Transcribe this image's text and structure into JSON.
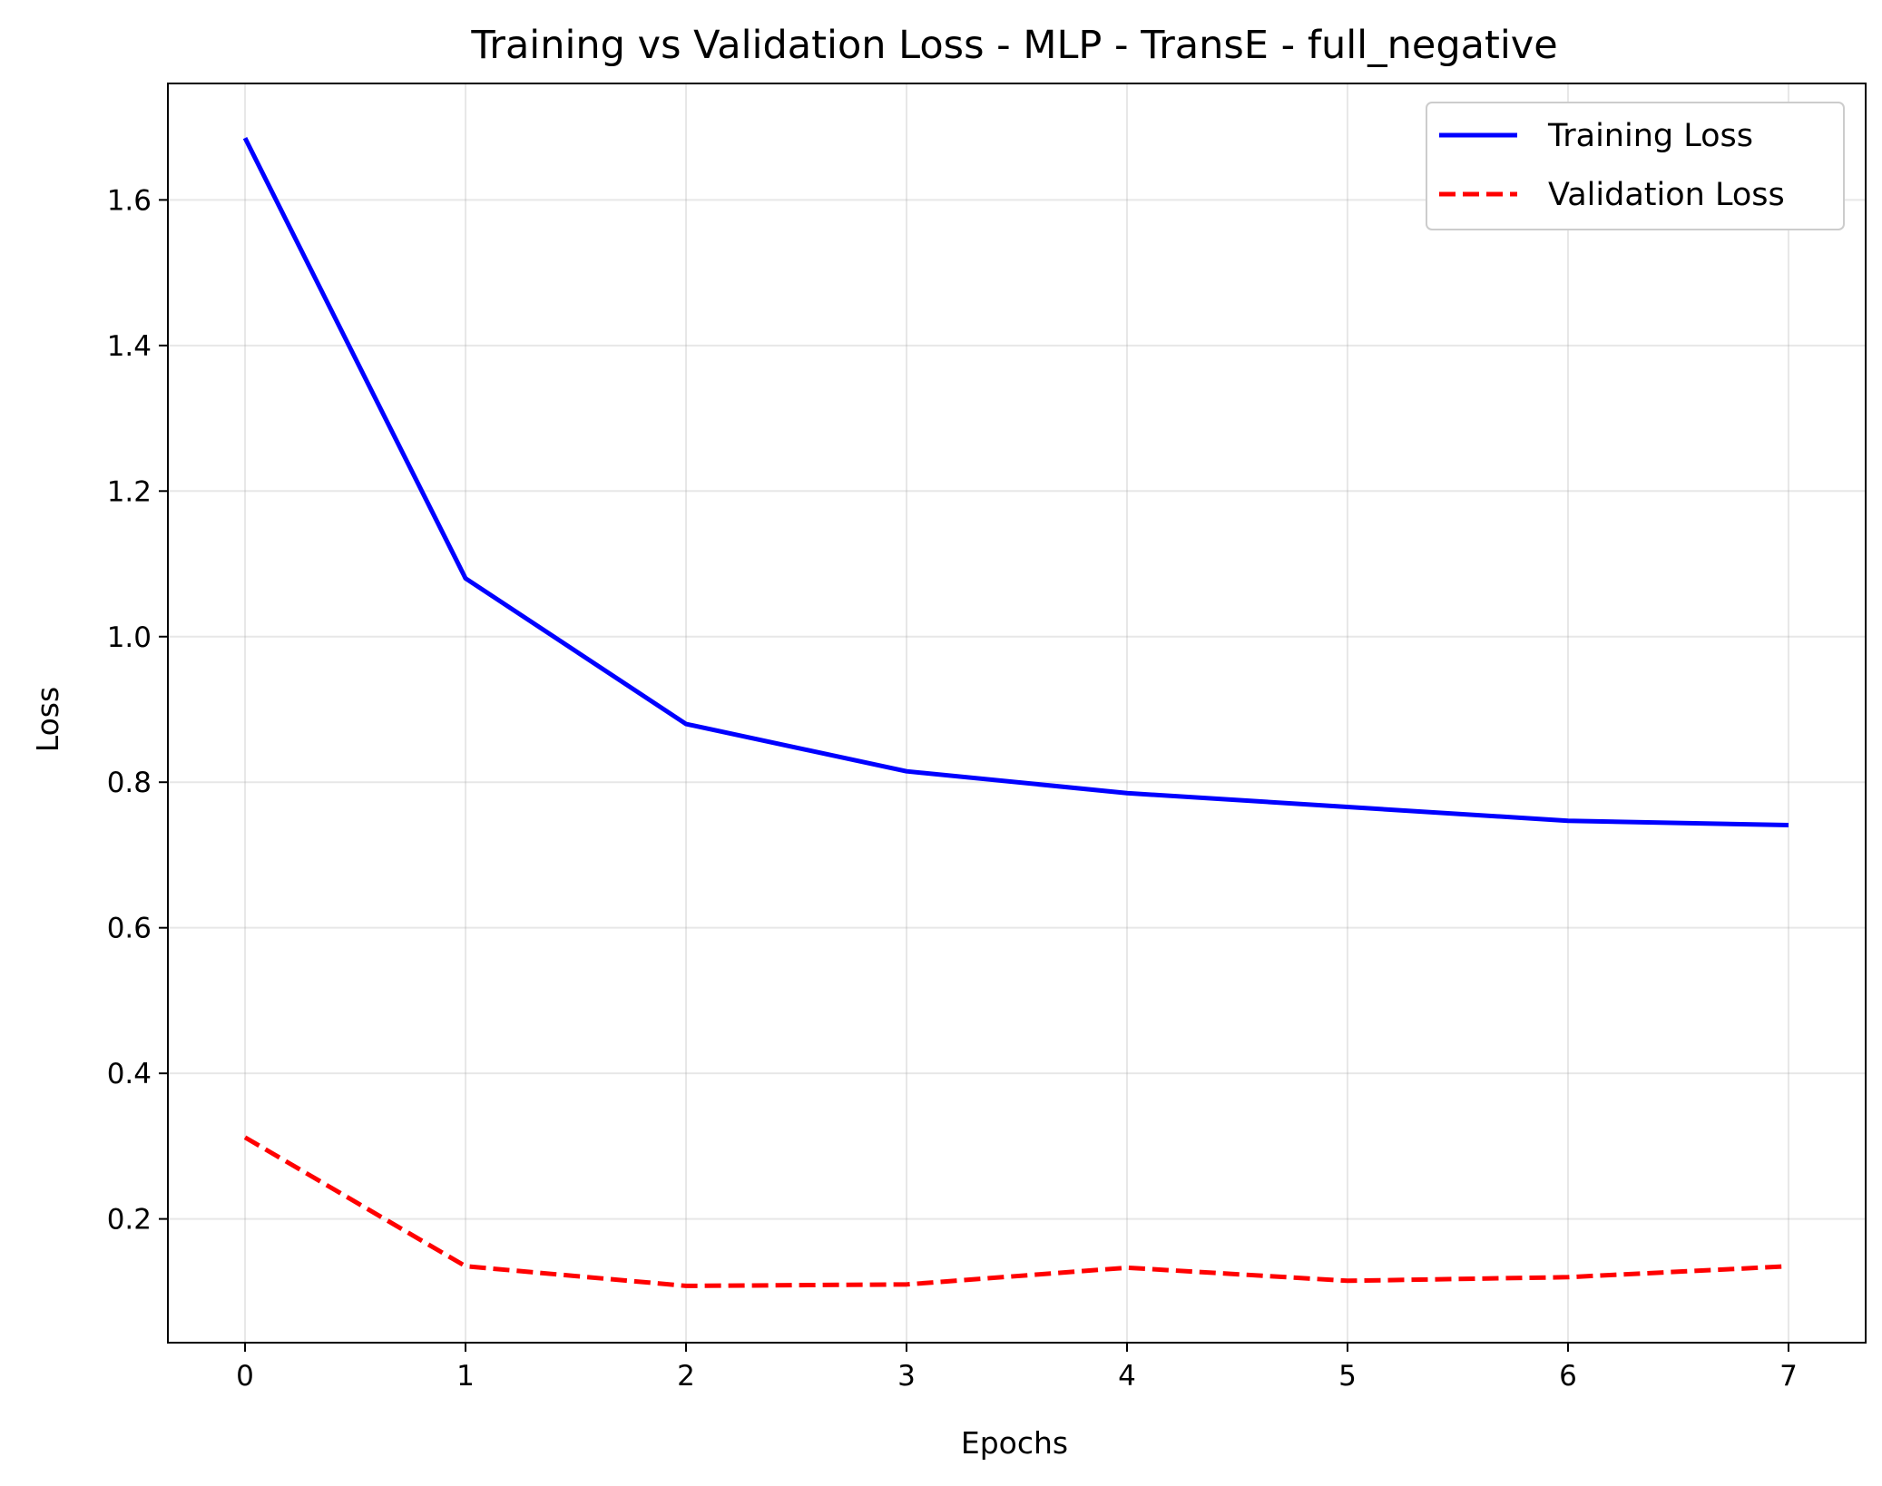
{
  "chart_data": {
    "type": "line",
    "title": "Training vs Validation Loss - MLP - TransE - full_negative",
    "xlabel": "Epochs",
    "ylabel": "Loss",
    "x": [
      0,
      1,
      2,
      3,
      4,
      5,
      6,
      7
    ],
    "xticks": [
      "0",
      "1",
      "2",
      "3",
      "4",
      "5",
      "6",
      "7"
    ],
    "yticks": [
      "0.2",
      "0.4",
      "0.6",
      "0.8",
      "1.0",
      "1.2",
      "1.4",
      "1.6"
    ],
    "xlim": [
      -0.35,
      7.35
    ],
    "ylim": [
      0.03,
      1.76
    ],
    "grid": true,
    "legend_position": "top-right",
    "series": [
      {
        "name": "Training Loss",
        "color": "#0000ff",
        "dash": "solid",
        "values": [
          1.685,
          1.08,
          0.88,
          0.815,
          0.785,
          0.766,
          0.747,
          0.741
        ]
      },
      {
        "name": "Validation Loss",
        "color": "#ff0000",
        "dash": "dashed",
        "values": [
          0.312,
          0.135,
          0.108,
          0.11,
          0.133,
          0.115,
          0.12,
          0.135
        ]
      }
    ]
  }
}
